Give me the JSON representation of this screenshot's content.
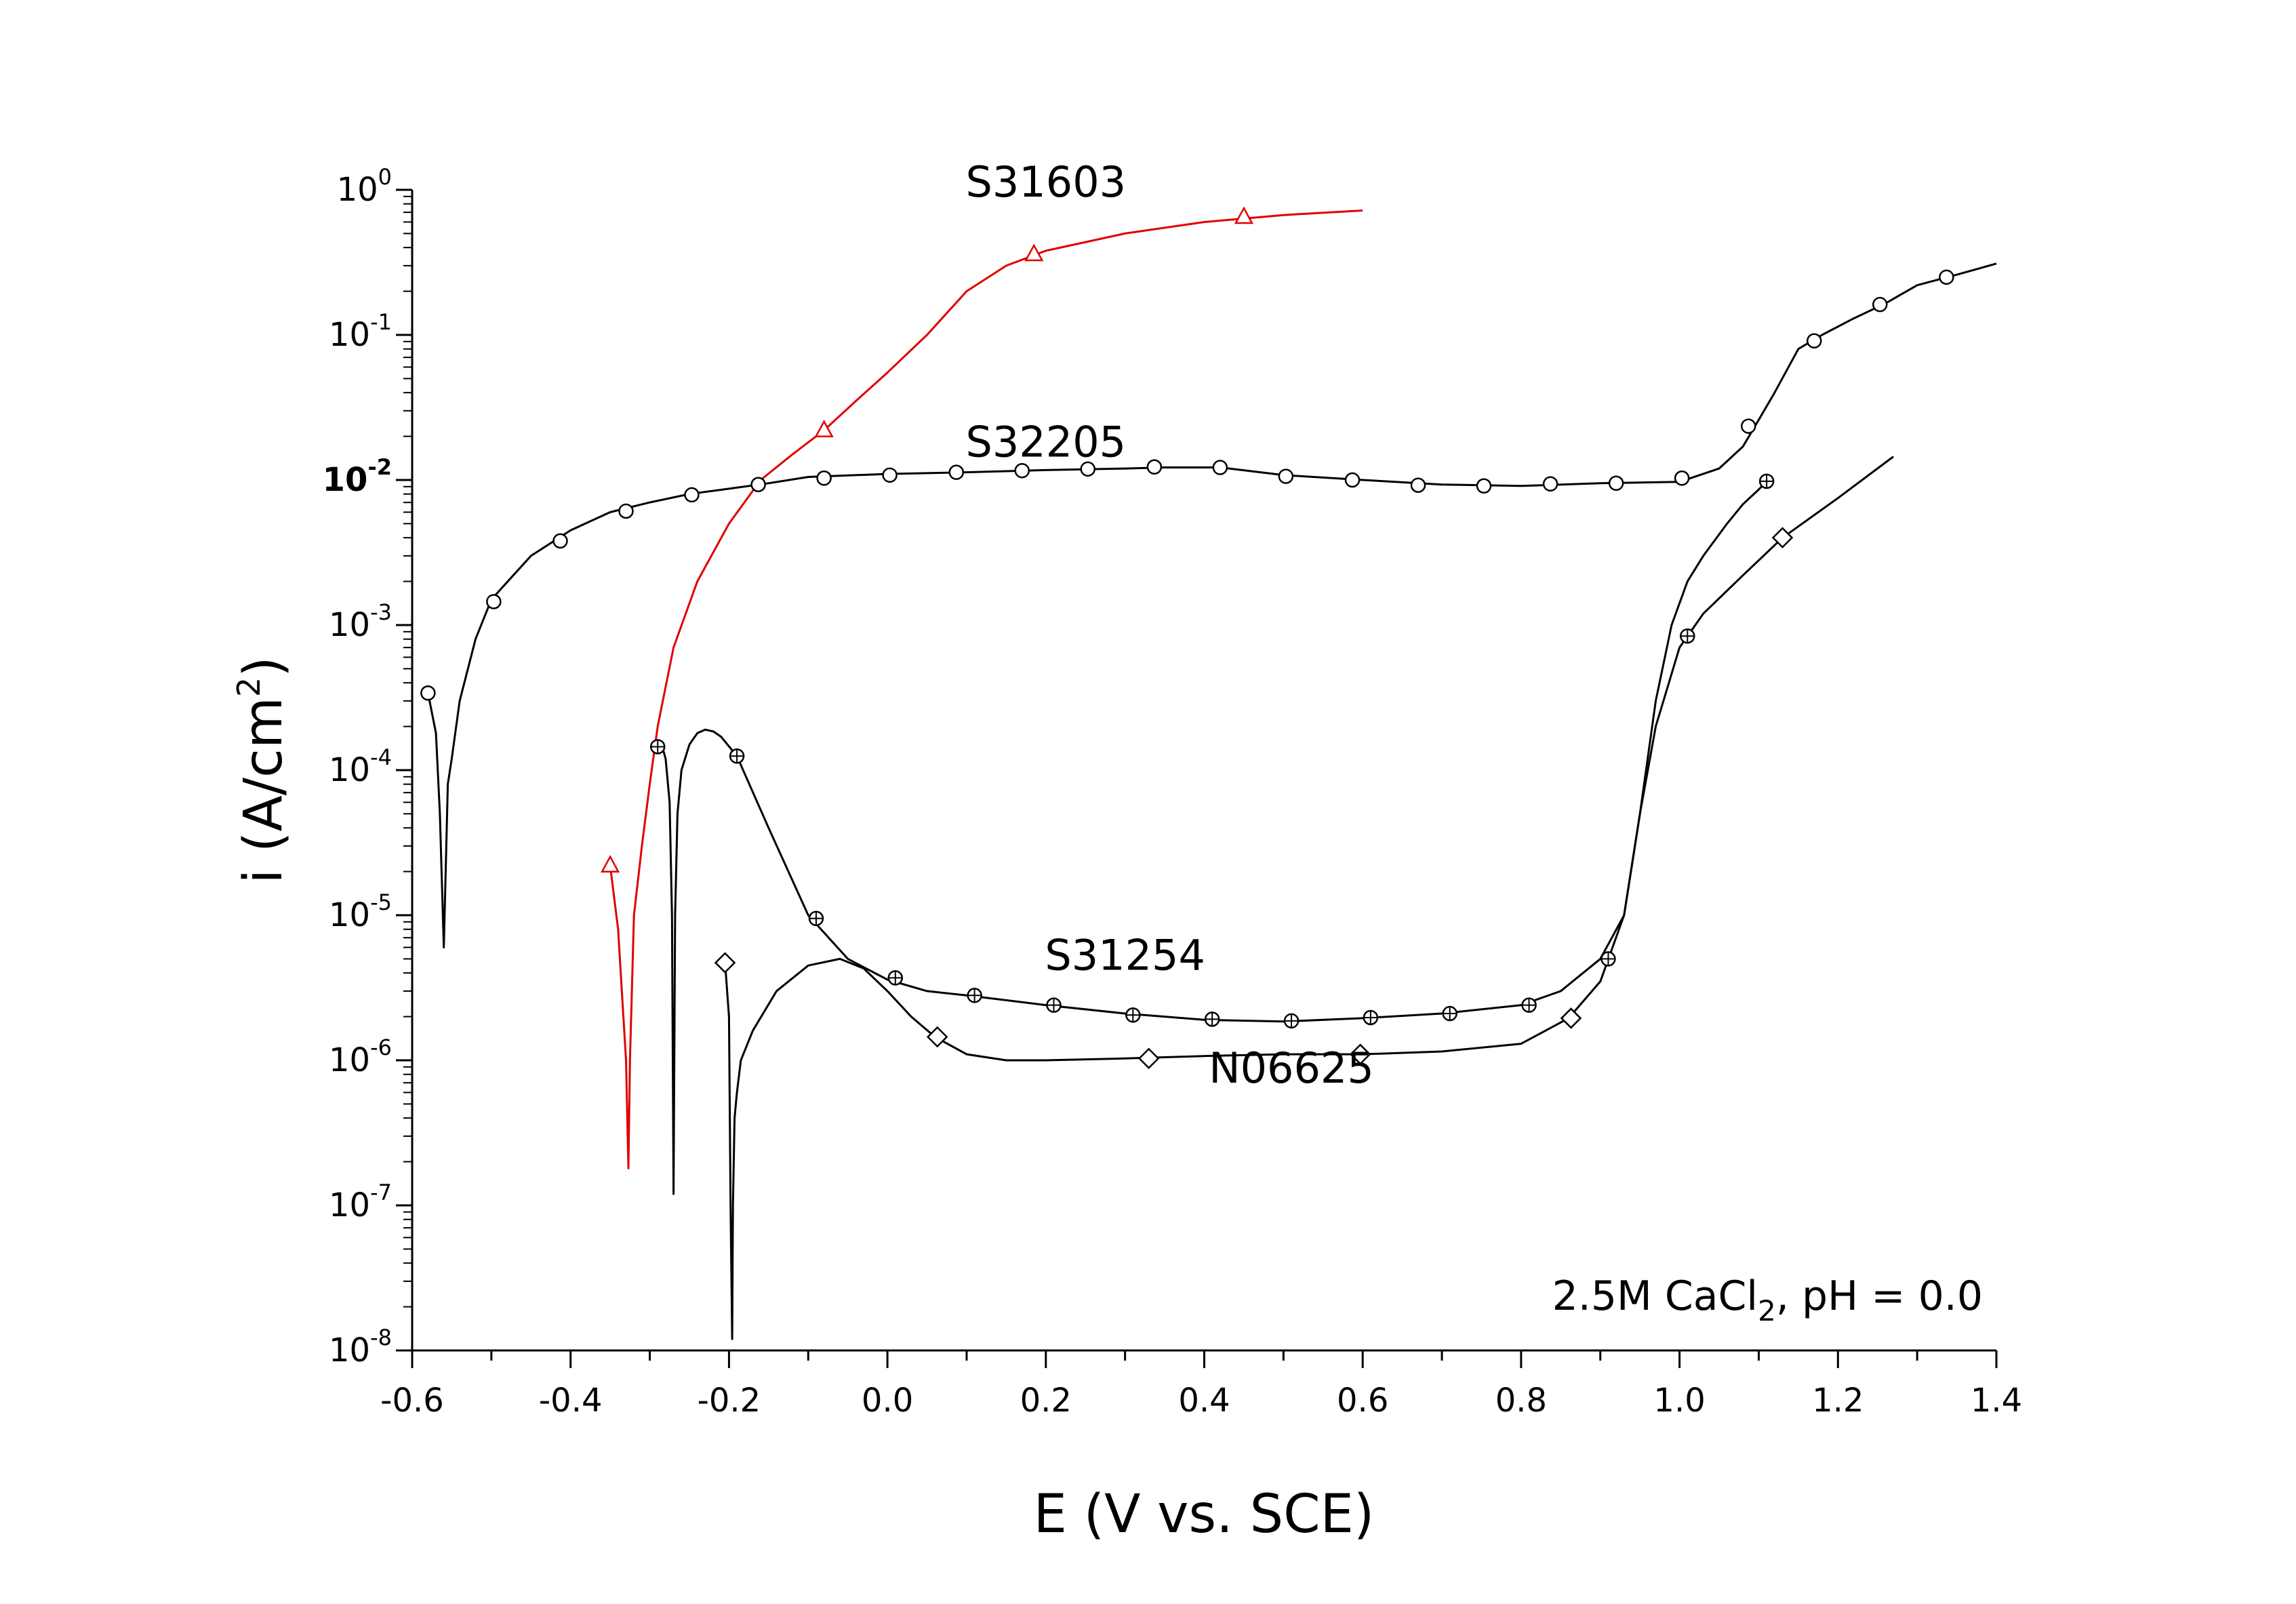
{
  "chart_data": {
    "type": "line",
    "xlabel": "E (V vs. SCE)",
    "ylabel_base": "i (A/cm",
    "ylabel_sup": "2",
    "ylabel_tail": ")",
    "xscale": "linear",
    "yscale": "log",
    "xlim": [
      -0.6,
      1.4
    ],
    "ylim": [
      1e-08,
      1
    ],
    "grid": false,
    "x_ticks": [
      {
        "value": -0.6,
        "label": "-0.6"
      },
      {
        "value": -0.4,
        "label": "-0.4"
      },
      {
        "value": -0.2,
        "label": "-0.2"
      },
      {
        "value": 0.0,
        "label": "0.0"
      },
      {
        "value": 0.2,
        "label": "0.2"
      },
      {
        "value": 0.4,
        "label": "0.4"
      },
      {
        "value": 0.6,
        "label": "0.6"
      },
      {
        "value": 0.8,
        "label": "0.8"
      },
      {
        "value": 1.0,
        "label": "1.0"
      },
      {
        "value": 1.2,
        "label": "1.2"
      },
      {
        "value": 1.4,
        "label": "1.4"
      }
    ],
    "y_ticks": [
      {
        "exp": 0,
        "base": "10",
        "sup": "0",
        "bold": false
      },
      {
        "exp": -1,
        "base": "10",
        "sup": "-1",
        "bold": false
      },
      {
        "exp": -2,
        "base": "10",
        "sup": "-2",
        "bold": true
      },
      {
        "exp": -3,
        "base": "10",
        "sup": "-3",
        "bold": false
      },
      {
        "exp": -4,
        "base": "10",
        "sup": "-4",
        "bold": false
      },
      {
        "exp": -5,
        "base": "10",
        "sup": "-5",
        "bold": false
      },
      {
        "exp": -6,
        "base": "10",
        "sup": "-6",
        "bold": false
      },
      {
        "exp": -7,
        "base": "10",
        "sup": "-7",
        "bold": false
      },
      {
        "exp": -8,
        "base": "10",
        "sup": "-8",
        "bold": false
      }
    ],
    "annotation": {
      "base": "2.5M CaCl",
      "sub": "2",
      "tail": ", pH = 0.0",
      "position": "bottom-right"
    },
    "series": [
      {
        "name": "S31603",
        "color": "#e00000",
        "marker": "triangle",
        "label_at": {
          "x": 0.2,
          "y": 0.9
        },
        "x": [
          -0.35,
          -0.34,
          -0.33,
          -0.327,
          -0.325,
          -0.32,
          -0.31,
          -0.3,
          -0.29,
          -0.27,
          -0.24,
          -0.2,
          -0.16,
          -0.12,
          -0.08,
          -0.04,
          0.0,
          0.05,
          0.1,
          0.15,
          0.2,
          0.3,
          0.4,
          0.5,
          0.6
        ],
        "y": [
          2.2e-05,
          8e-06,
          1e-06,
          1.8e-07,
          1e-06,
          1e-05,
          3e-05,
          8e-05,
          0.0002,
          0.0007,
          0.002,
          0.005,
          0.01,
          0.015,
          0.022,
          0.035,
          0.055,
          0.1,
          0.2,
          0.3,
          0.38,
          0.5,
          0.6,
          0.67,
          0.72
        ],
        "marker_x": [
          -0.35,
          -0.08,
          0.185,
          0.45
        ],
        "marker_y": [
          2.2e-05,
          0.022,
          0.36,
          0.65
        ]
      },
      {
        "name": "S32205",
        "color": "#000000",
        "marker": "circle",
        "label_at": {
          "x": 0.2,
          "y": 0.0145
        },
        "x": [
          -0.58,
          -0.57,
          -0.565,
          -0.56,
          -0.555,
          -0.55,
          -0.54,
          -0.52,
          -0.5,
          -0.45,
          -0.4,
          -0.35,
          -0.3,
          -0.25,
          -0.2,
          -0.15,
          -0.1,
          0.0,
          0.1,
          0.2,
          0.3,
          0.35,
          0.42,
          0.5,
          0.6,
          0.7,
          0.8,
          0.9,
          1.0,
          1.05,
          1.08,
          1.1,
          1.12,
          1.15,
          1.18,
          1.22,
          1.26,
          1.3,
          1.35,
          1.4
        ],
        "y": [
          0.00034,
          0.00018,
          5e-05,
          6e-06,
          8e-05,
          0.00012,
          0.0003,
          0.0008,
          0.0015,
          0.003,
          0.0045,
          0.006,
          0.007,
          0.008,
          0.0087,
          0.0095,
          0.0105,
          0.011,
          0.0113,
          0.0117,
          0.012,
          0.0122,
          0.0122,
          0.0108,
          0.01,
          0.0093,
          0.0091,
          0.0095,
          0.0097,
          0.012,
          0.017,
          0.026,
          0.04,
          0.08,
          0.1,
          0.13,
          0.165,
          0.22,
          0.26,
          0.31
        ],
        "marker_x": [
          -0.58,
          -0.497,
          -0.413,
          -0.33,
          -0.247,
          -0.163,
          -0.08,
          0.003,
          0.087,
          0.17,
          0.253,
          0.337,
          0.42,
          0.503,
          0.587,
          0.67,
          0.753,
          0.837,
          0.92,
          1.003,
          1.087,
          1.17,
          1.253,
          1.337
        ],
        "marker_y": [
          0.00034,
          0.00145,
          0.0038,
          0.0061,
          0.0079,
          0.0093,
          0.0103,
          0.0108,
          0.0113,
          0.0116,
          0.0119,
          0.0123,
          0.0122,
          0.0106,
          0.01,
          0.0092,
          0.0091,
          0.0094,
          0.0095,
          0.0103,
          0.0235,
          0.091,
          0.162,
          0.25
        ]
      },
      {
        "name": "S31254",
        "color": "#000000",
        "marker": "circle-plus",
        "label_at": {
          "x": 0.3,
          "y": 4.2e-06
        },
        "x": [
          -0.295,
          -0.285,
          -0.28,
          -0.275,
          -0.272,
          -0.27,
          -0.268,
          -0.265,
          -0.26,
          -0.25,
          -0.24,
          -0.23,
          -0.22,
          -0.21,
          -0.19,
          -0.15,
          -0.1,
          -0.05,
          0.0,
          0.05,
          0.1,
          0.2,
          0.3,
          0.4,
          0.5,
          0.6,
          0.7,
          0.8,
          0.85,
          0.9,
          0.93,
          0.95,
          0.97,
          0.99,
          1.01,
          1.03,
          1.06,
          1.08,
          1.1,
          1.11
        ],
        "y": [
          0.000145,
          0.00015,
          0.00012,
          6e-05,
          1e-05,
          1.2e-07,
          1e-05,
          5e-05,
          0.0001,
          0.00015,
          0.00018,
          0.00019,
          0.000185,
          0.00017,
          0.000125,
          4e-05,
          1e-05,
          5e-06,
          3.6e-06,
          3e-06,
          2.8e-06,
          2.4e-06,
          2.1e-06,
          1.9e-06,
          1.85e-06,
          1.95e-06,
          2.1e-06,
          2.4e-06,
          3e-06,
          5e-06,
          1e-05,
          5e-05,
          0.0003,
          0.001,
          0.002,
          0.003,
          0.005,
          0.0068,
          0.0086,
          0.0098
        ],
        "marker_x": [
          -0.29,
          -0.19,
          -0.09,
          0.01,
          0.11,
          0.21,
          0.31,
          0.41,
          0.51,
          0.61,
          0.71,
          0.81,
          0.91,
          1.01,
          1.11
        ],
        "marker_y": [
          0.000145,
          0.000125,
          9.5e-06,
          3.7e-06,
          2.8e-06,
          2.4e-06,
          2.05e-06,
          1.92e-06,
          1.87e-06,
          1.97e-06,
          2.1e-06,
          2.4e-06,
          5e-06,
          0.00084,
          0.0098
        ]
      },
      {
        "name": "N06625",
        "color": "#000000",
        "marker": "diamond",
        "label_at": {
          "x": 0.51,
          "y": 7e-07
        },
        "x": [
          -0.205,
          -0.2,
          -0.198,
          -0.196,
          -0.195,
          -0.193,
          -0.19,
          -0.185,
          -0.17,
          -0.14,
          -0.1,
          -0.06,
          -0.03,
          0.0,
          0.03,
          0.06,
          0.1,
          0.15,
          0.2,
          0.3,
          0.4,
          0.5,
          0.6,
          0.7,
          0.8,
          0.86,
          0.9,
          0.93,
          0.95,
          0.97,
          1.0,
          1.03,
          1.08,
          1.13,
          1.2,
          1.27
        ],
        "y": [
          4.7e-06,
          2e-06,
          1e-07,
          1.2e-08,
          1e-07,
          4e-07,
          6e-07,
          1e-06,
          1.6e-06,
          3e-06,
          4.5e-06,
          5e-06,
          4.3e-06,
          3e-06,
          2e-06,
          1.45e-06,
          1.1e-06,
          1e-06,
          1e-06,
          1.03e-06,
          1.07e-06,
          1.1e-06,
          1.1e-06,
          1.15e-06,
          1.3e-06,
          1.95e-06,
          3.5e-06,
          1e-05,
          5e-05,
          0.0002,
          0.0007,
          0.0012,
          0.0022,
          0.004,
          0.0075,
          0.0145
        ],
        "marker_x": [
          -0.205,
          0.063,
          0.33,
          0.597,
          0.863,
          1.13
        ],
        "marker_y": [
          4.7e-06,
          1.45e-06,
          1.03e-06,
          1.1e-06,
          1.95e-06,
          0.004
        ]
      }
    ]
  }
}
